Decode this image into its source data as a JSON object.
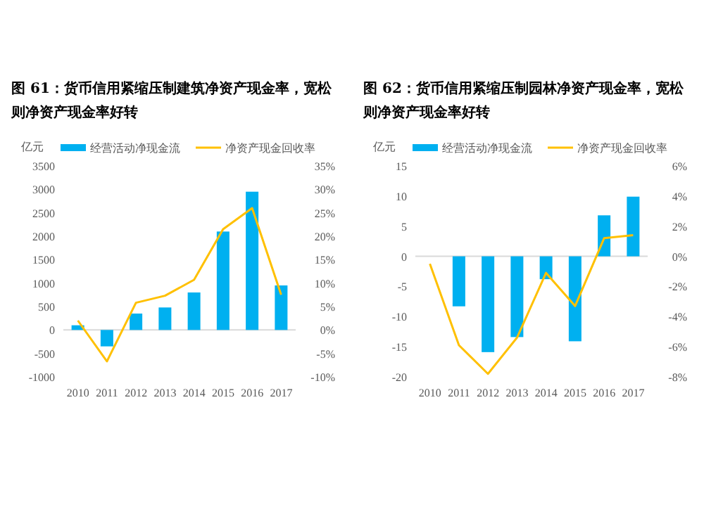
{
  "chart_data": [
    {
      "type": "bar",
      "title": "图 61：货币信用紧缩压制建筑净资产现金率，宽松则净资产现金率好转",
      "ylabel": "亿元",
      "categories": [
        "2010",
        "2011",
        "2012",
        "2013",
        "2014",
        "2015",
        "2016",
        "2017"
      ],
      "ylim": [
        -1000,
        3500
      ],
      "yticks": [
        -1000,
        -500,
        0,
        500,
        1000,
        1500,
        2000,
        2500,
        3000,
        3500
      ],
      "y2lim": [
        -10,
        35
      ],
      "y2ticks": [
        {
          "value": -10,
          "label": "-10%"
        },
        {
          "value": -5,
          "label": "-5%"
        },
        {
          "value": 0,
          "label": "0%"
        },
        {
          "value": 5,
          "label": "5%"
        },
        {
          "value": 10,
          "label": "10%"
        },
        {
          "value": 15,
          "label": "15%"
        },
        {
          "value": 20,
          "label": "20%"
        },
        {
          "value": 25,
          "label": "25%"
        },
        {
          "value": 30,
          "label": "30%"
        },
        {
          "value": 35,
          "label": "35%"
        }
      ],
      "legend": "top",
      "series": [
        {
          "name": "经营活动净现金流",
          "color": "#00b0f0",
          "values": [
            100,
            -350,
            350,
            480,
            800,
            2100,
            2950,
            950
          ]
        },
        {
          "name": "净资产现金回收率",
          "color": "#ffc000",
          "type": "line",
          "axis": "y2",
          "values": [
            2,
            -6.7,
            5.8,
            7.3,
            10.7,
            21.5,
            26,
            7.5
          ]
        }
      ]
    },
    {
      "type": "bar",
      "title": "图 62：货币信用紧缩压制园林净资产现金率，宽松则净资产现金率好转",
      "ylabel": "亿元",
      "categories": [
        "2010",
        "2011",
        "2012",
        "2013",
        "2014",
        "2015",
        "2016",
        "2017"
      ],
      "ylim": [
        -20,
        15
      ],
      "yticks": [
        -20,
        -15,
        -10,
        -5,
        0,
        5,
        10,
        15
      ],
      "y2lim": [
        -8,
        6
      ],
      "y2ticks": [
        {
          "value": -8,
          "label": "-8%"
        },
        {
          "value": -6,
          "label": "-6%"
        },
        {
          "value": -4,
          "label": "-4%"
        },
        {
          "value": -2,
          "label": "-2%"
        },
        {
          "value": 0,
          "label": "0%"
        },
        {
          "value": 2,
          "label": "2%"
        },
        {
          "value": 4,
          "label": "4%"
        },
        {
          "value": 6,
          "label": "6%"
        }
      ],
      "legend": "top",
      "series": [
        {
          "name": "经营活动净现金流",
          "color": "#00b0f0",
          "values": [
            null,
            -8.3,
            -15.9,
            -13.4,
            -3.8,
            -14.1,
            6.8,
            9.9
          ]
        },
        {
          "name": "净资产现金回收率",
          "color": "#ffc000",
          "type": "line",
          "axis": "y2",
          "values": [
            -0.5,
            -5.9,
            -7.8,
            -5.4,
            -1.1,
            -3.3,
            1.2,
            1.4
          ]
        }
      ]
    }
  ]
}
